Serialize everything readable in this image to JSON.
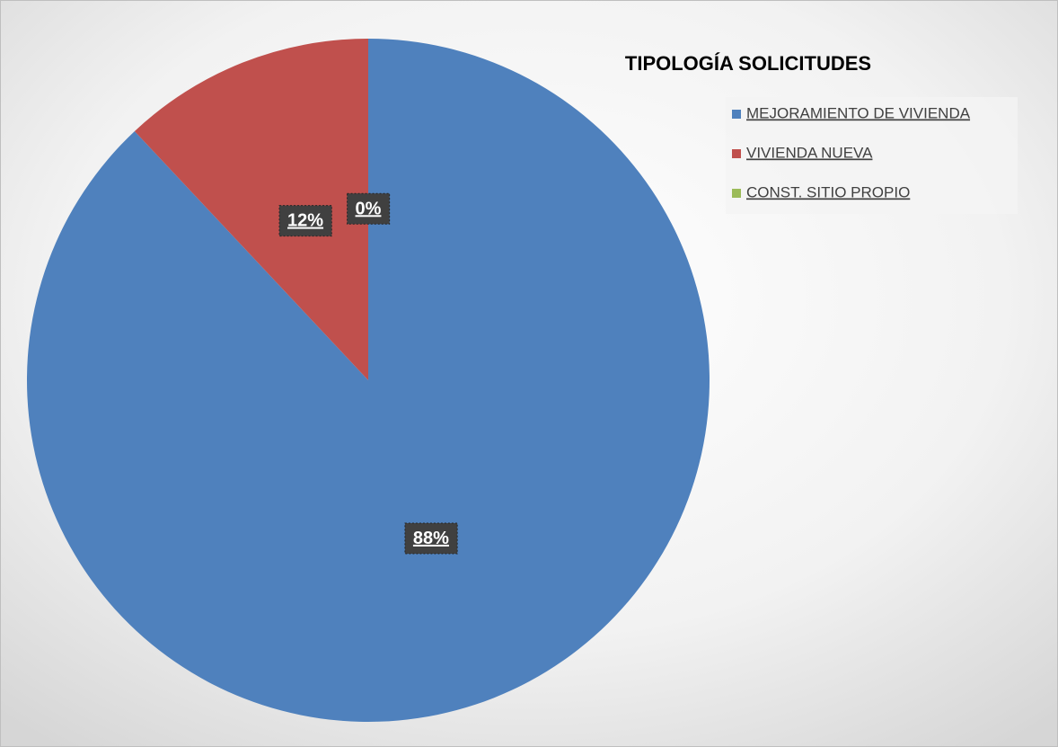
{
  "chart_data": {
    "type": "pie",
    "title": "TIPOLOGÍA SOLICITUDES",
    "categories": [
      "MEJORAMIENTO DE VIVIENDA",
      "VIVIENDA NUEVA",
      "CONST. SITIO PROPIO"
    ],
    "values": [
      88,
      12,
      0
    ],
    "value_labels": [
      "88%",
      "12%",
      "0%"
    ],
    "colors": [
      "#4f81bd",
      "#c0504d",
      "#9bbb59"
    ],
    "legend": "top-right"
  }
}
